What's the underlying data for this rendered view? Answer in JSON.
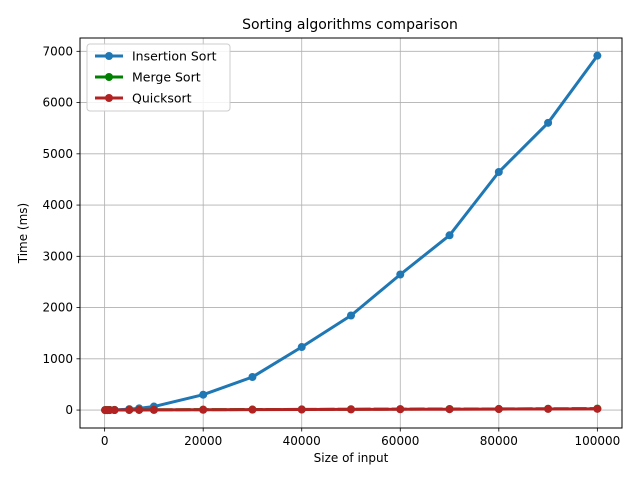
{
  "chart_data": {
    "type": "line",
    "title": "Sorting algorithms comparison",
    "xlabel": "Size of input",
    "ylabel": "Time (ms)",
    "xlim": [
      -5000,
      105000
    ],
    "ylim": [
      -350,
      7260
    ],
    "xticks": [
      0,
      20000,
      40000,
      60000,
      80000,
      100000
    ],
    "yticks": [
      0,
      1000,
      2000,
      3000,
      4000,
      5000,
      6000,
      7000
    ],
    "grid": true,
    "legend": "top-left",
    "series": [
      {
        "name": "Insertion Sort",
        "color": "#1f77b4",
        "marker": "circle",
        "x": [
          100,
          500,
          1000,
          2000,
          5000,
          7000,
          10000,
          20000,
          30000,
          40000,
          50000,
          60000,
          70000,
          80000,
          90000,
          100000
        ],
        "y": [
          0,
          0,
          1,
          3,
          18,
          34,
          69,
          300,
          645,
          1230,
          1845,
          2645,
          3410,
          4645,
          5605,
          6915
        ]
      },
      {
        "name": "Merge Sort",
        "color": "#008000",
        "marker": "circle",
        "x": [
          100,
          500,
          1000,
          2000,
          5000,
          7000,
          10000,
          20000,
          30000,
          40000,
          50000,
          60000,
          70000,
          80000,
          90000,
          100000
        ],
        "y": [
          0,
          0,
          1,
          1,
          3,
          4,
          5,
          9,
          10,
          13,
          16,
          19,
          21,
          22,
          26,
          28
        ]
      },
      {
        "name": "Quicksort",
        "color": "#b22222",
        "marker": "circle",
        "x": [
          100,
          500,
          1000,
          2000,
          5000,
          7000,
          10000,
          20000,
          30000,
          40000,
          50000,
          60000,
          70000,
          80000,
          90000,
          100000
        ],
        "y": [
          0,
          0,
          0,
          1,
          2,
          2,
          3,
          5,
          8,
          10,
          13,
          15,
          17,
          19,
          22,
          24
        ]
      }
    ]
  }
}
